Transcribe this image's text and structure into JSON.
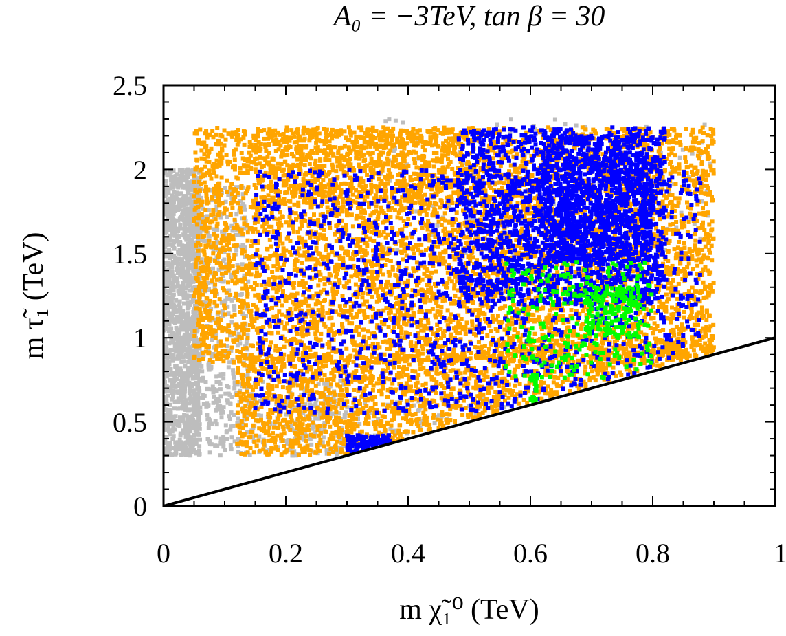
{
  "chart_data": {
    "type": "scatter",
    "title": "A₀ = −3TeV, tan β = 30",
    "xlabel": "m χ̃₁⁰ (TeV)",
    "ylabel": "m τ̃₁ (TeV)",
    "xlim": [
      0,
      1
    ],
    "ylim": [
      0,
      2.5
    ],
    "x_ticks": [
      "0",
      "0.2",
      "0.4",
      "0.6",
      "0.8",
      "1"
    ],
    "y_ticks": [
      "0",
      "0.5",
      "1",
      "1.5",
      "2",
      "2.5"
    ],
    "grid": false,
    "legend": "none",
    "series": [
      {
        "color": "#bdbdbd",
        "regions": [
          {
            "x": [
              0.0,
              0.06
            ],
            "y": [
              0.3,
              2.0
            ],
            "n": 1400
          },
          {
            "x": [
              0.03,
              0.14
            ],
            "y": [
              0.55,
              1.9
            ],
            "n": 450
          },
          {
            "x": [
              0.07,
              0.3
            ],
            "y": [
              0.3,
              0.75
            ],
            "n": 280
          },
          {
            "x": [
              0.2,
              0.7
            ],
            "y": [
              0.3,
              0.65
            ],
            "n": 260
          },
          {
            "x": [
              0.35,
              0.9
            ],
            "y": [
              1.5,
              2.3
            ],
            "n": 160
          }
        ]
      },
      {
        "color": "#ffa500",
        "regions": [
          {
            "x": [
              0.05,
              0.9
            ],
            "y": [
              0.85,
              2.25
            ],
            "n": 5600
          },
          {
            "x": [
              0.12,
              0.55
            ],
            "y": [
              0.3,
              0.9
            ],
            "n": 1400
          },
          {
            "x": [
              0.55,
              0.9
            ],
            "y": [
              0.6,
              1.0
            ],
            "n": 650
          },
          {
            "x": [
              0.17,
              0.5
            ],
            "y": [
              1.8,
              2.25
            ],
            "n": 450
          }
        ]
      },
      {
        "color": "#0000ff",
        "regions": [
          {
            "x": [
              0.15,
              0.88
            ],
            "y": [
              0.55,
              2.0
            ],
            "n": 1500
          },
          {
            "x": [
              0.48,
              0.82
            ],
            "y": [
              1.2,
              2.25
            ],
            "n": 1500
          },
          {
            "x": [
              0.62,
              0.8
            ],
            "y": [
              1.45,
              2.2
            ],
            "n": 900
          },
          {
            "x": [
              0.3,
              0.37
            ],
            "y": [
              0.32,
              0.42
            ],
            "n": 140
          }
        ]
      },
      {
        "color": "#00ff00",
        "regions": [
          {
            "x": [
              0.56,
              0.8
            ],
            "y": [
              0.75,
              1.45
            ],
            "n": 220
          },
          {
            "x": [
              0.69,
              0.78
            ],
            "y": [
              1.0,
              1.3
            ],
            "n": 160
          },
          {
            "x": [
              0.6,
              0.61
            ],
            "y": [
              0.6,
              0.78
            ],
            "n": 25
          }
        ]
      }
    ],
    "lines": [
      {
        "color": "#000000",
        "x": [
          0,
          1
        ],
        "y": [
          0,
          1
        ]
      }
    ]
  }
}
